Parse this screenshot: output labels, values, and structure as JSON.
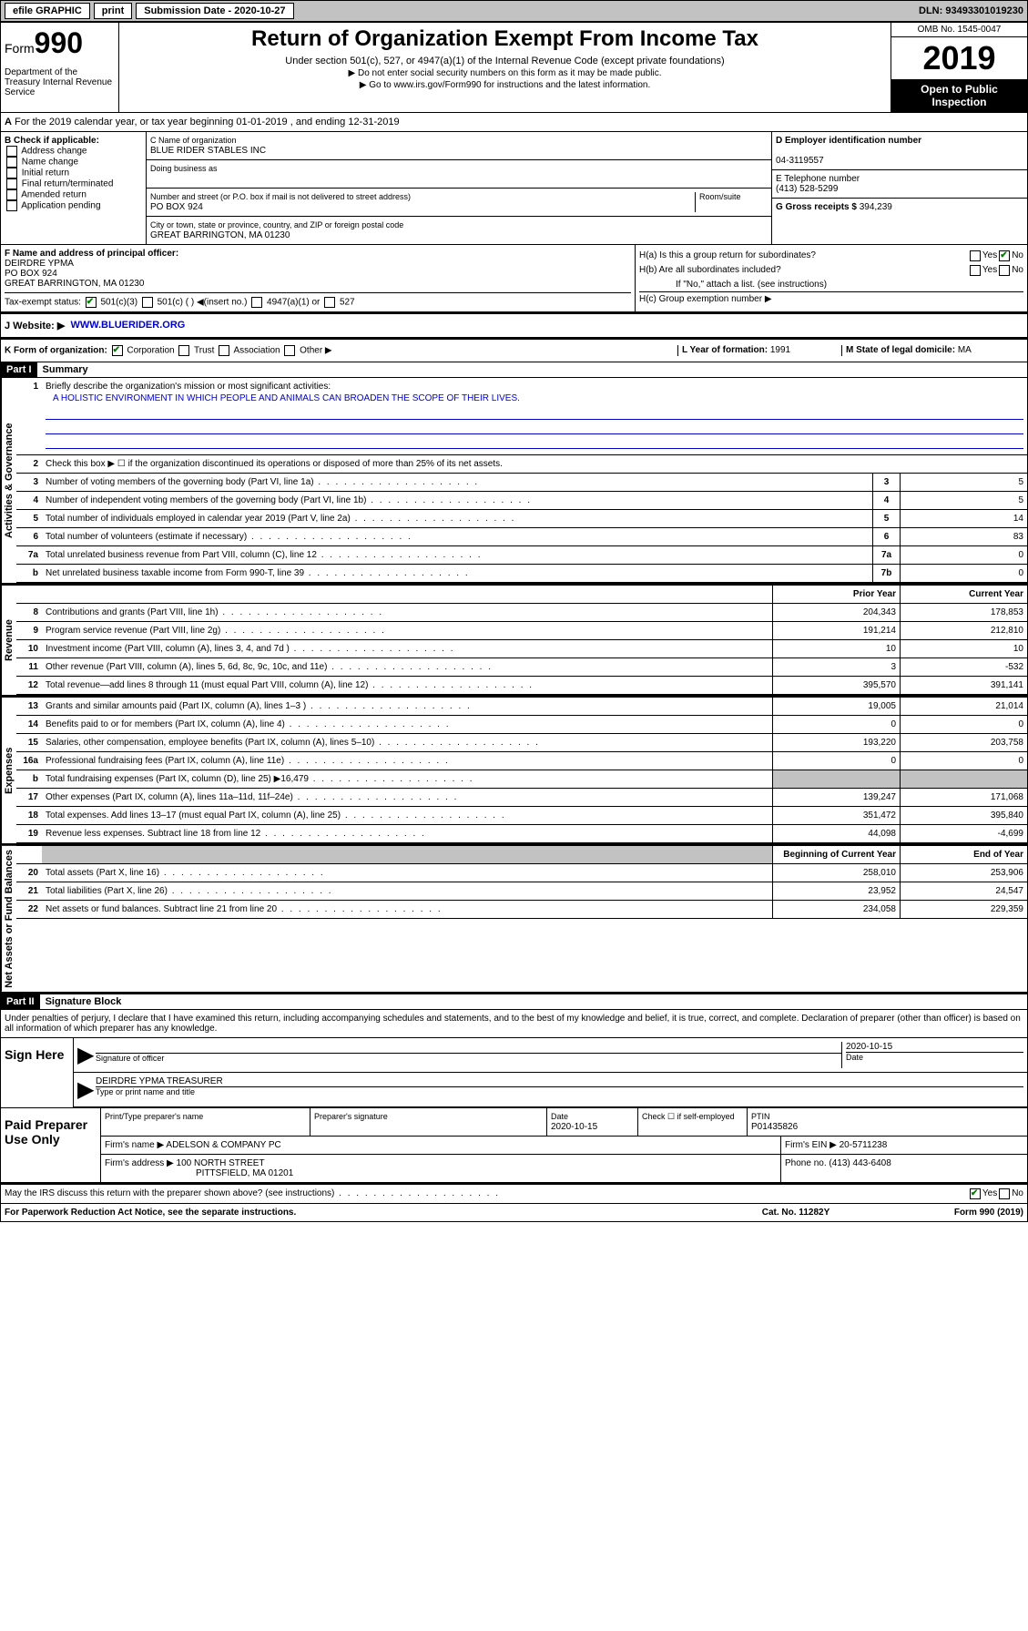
{
  "topbar": {
    "efile": "efile GRAPHIC",
    "print": "print",
    "submission": "Submission Date - 2020-10-27",
    "dln": "DLN: 93493301019230"
  },
  "header": {
    "form": "Form",
    "formnum": "990",
    "dept": "Department of the Treasury Internal Revenue Service",
    "title": "Return of Organization Exempt From Income Tax",
    "sub1": "Under section 501(c), 527, or 4947(a)(1) of the Internal Revenue Code (except private foundations)",
    "sub2": "▶ Do not enter social security numbers on this form as it may be made public.",
    "sub3": "▶ Go to www.irs.gov/Form990 for instructions and the latest information.",
    "omb": "OMB No. 1545-0047",
    "year": "2019",
    "open": "Open to Public Inspection"
  },
  "sectionA": "For the 2019 calendar year, or tax year beginning 01-01-2019    , and ending 12-31-2019",
  "checkB": {
    "label": "B Check if applicable:",
    "items": [
      "Address change",
      "Name change",
      "Initial return",
      "Final return/terminated",
      "Amended return",
      "Application pending"
    ]
  },
  "colC": {
    "name_label": "C Name of organization",
    "name": "BLUE RIDER STABLES INC",
    "dba_label": "Doing business as",
    "addr_label": "Number and street (or P.O. box if mail is not delivered to street address)",
    "room_label": "Room/suite",
    "addr": "PO BOX 924",
    "city_label": "City or town, state or province, country, and ZIP or foreign postal code",
    "city": "GREAT BARRINGTON, MA  01230"
  },
  "colD": {
    "ein_label": "D Employer identification number",
    "ein": "04-3119557",
    "phone_label": "E Telephone number",
    "phone": "(413) 528-5299",
    "receipts_label": "G Gross receipts $",
    "receipts": "394,239"
  },
  "colF": {
    "label": "F Name and address of principal officer:",
    "name": "DEIRDRE YPMA",
    "addr1": "PO BOX 924",
    "addr2": "GREAT BARRINGTON, MA  01230"
  },
  "colH": {
    "ha": "H(a)  Is this a group return for subordinates?",
    "hb": "H(b)  Are all subordinates included?",
    "hb_note": "If \"No,\" attach a list. (see instructions)",
    "hc": "H(c)  Group exemption number ▶"
  },
  "rowI": {
    "label": "Tax-exempt status:",
    "opts": [
      "501(c)(3)",
      "501(c) (   ) ◀(insert no.)",
      "4947(a)(1) or",
      "527"
    ]
  },
  "rowJ": {
    "label": "J  Website: ▶",
    "val": "WWW.BLUERIDER.ORG"
  },
  "rowK": {
    "label": "K Form of organization:",
    "opts": [
      "Corporation",
      "Trust",
      "Association",
      "Other ▶"
    ],
    "l_label": "L Year of formation:",
    "l_val": "1991",
    "m_label": "M State of legal domicile:",
    "m_val": "MA"
  },
  "part1": {
    "hdr": "Part I",
    "title": "Summary",
    "q1": "Briefly describe the organization's mission or most significant activities:",
    "mission": "A HOLISTIC ENVIRONMENT IN WHICH PEOPLE AND ANIMALS CAN BROADEN THE SCOPE OF THEIR LIVES.",
    "q2": "Check this box ▶ ☐  if the organization discontinued its operations or disposed of more than 25% of its net assets.",
    "rows_gov": [
      {
        "n": "3",
        "desc": "Number of voting members of the governing body (Part VI, line 1a)",
        "box": "3",
        "val": "5"
      },
      {
        "n": "4",
        "desc": "Number of independent voting members of the governing body (Part VI, line 1b)",
        "box": "4",
        "val": "5"
      },
      {
        "n": "5",
        "desc": "Total number of individuals employed in calendar year 2019 (Part V, line 2a)",
        "box": "5",
        "val": "14"
      },
      {
        "n": "6",
        "desc": "Total number of volunteers (estimate if necessary)",
        "box": "6",
        "val": "83"
      },
      {
        "n": "7a",
        "desc": "Total unrelated business revenue from Part VIII, column (C), line 12",
        "box": "7a",
        "val": "0"
      },
      {
        "n": "b",
        "desc": "Net unrelated business taxable income from Form 990-T, line 39",
        "box": "7b",
        "val": "0"
      }
    ],
    "col_hdr_prior": "Prior Year",
    "col_hdr_curr": "Current Year",
    "rows_rev": [
      {
        "n": "8",
        "desc": "Contributions and grants (Part VIII, line 1h)",
        "c1": "204,343",
        "c2": "178,853"
      },
      {
        "n": "9",
        "desc": "Program service revenue (Part VIII, line 2g)",
        "c1": "191,214",
        "c2": "212,810"
      },
      {
        "n": "10",
        "desc": "Investment income (Part VIII, column (A), lines 3, 4, and 7d )",
        "c1": "10",
        "c2": "10"
      },
      {
        "n": "11",
        "desc": "Other revenue (Part VIII, column (A), lines 5, 6d, 8c, 9c, 10c, and 11e)",
        "c1": "3",
        "c2": "-532"
      },
      {
        "n": "12",
        "desc": "Total revenue—add lines 8 through 11 (must equal Part VIII, column (A), line 12)",
        "c1": "395,570",
        "c2": "391,141"
      }
    ],
    "rows_exp": [
      {
        "n": "13",
        "desc": "Grants and similar amounts paid (Part IX, column (A), lines 1–3 )",
        "c1": "19,005",
        "c2": "21,014"
      },
      {
        "n": "14",
        "desc": "Benefits paid to or for members (Part IX, column (A), line 4)",
        "c1": "0",
        "c2": "0"
      },
      {
        "n": "15",
        "desc": "Salaries, other compensation, employee benefits (Part IX, column (A), lines 5–10)",
        "c1": "193,220",
        "c2": "203,758"
      },
      {
        "n": "16a",
        "desc": "Professional fundraising fees (Part IX, column (A), line 11e)",
        "c1": "0",
        "c2": "0"
      },
      {
        "n": "b",
        "desc": "Total fundraising expenses (Part IX, column (D), line 25) ▶16,479",
        "c1": "",
        "c2": "",
        "shaded": true
      },
      {
        "n": "17",
        "desc": "Other expenses (Part IX, column (A), lines 11a–11d, 11f–24e)",
        "c1": "139,247",
        "c2": "171,068"
      },
      {
        "n": "18",
        "desc": "Total expenses. Add lines 13–17 (must equal Part IX, column (A), line 25)",
        "c1": "351,472",
        "c2": "395,840"
      },
      {
        "n": "19",
        "desc": "Revenue less expenses. Subtract line 18 from line 12",
        "c1": "44,098",
        "c2": "-4,699"
      }
    ],
    "col_hdr_beg": "Beginning of Current Year",
    "col_hdr_end": "End of Year",
    "rows_net": [
      {
        "n": "20",
        "desc": "Total assets (Part X, line 16)",
        "c1": "258,010",
        "c2": "253,906"
      },
      {
        "n": "21",
        "desc": "Total liabilities (Part X, line 26)",
        "c1": "23,952",
        "c2": "24,547"
      },
      {
        "n": "22",
        "desc": "Net assets or fund balances. Subtract line 21 from line 20",
        "c1": "234,058",
        "c2": "229,359"
      }
    ]
  },
  "part2": {
    "hdr": "Part II",
    "title": "Signature Block",
    "perjury": "Under penalties of perjury, I declare that I have examined this return, including accompanying schedules and statements, and to the best of my knowledge and belief, it is true, correct, and complete. Declaration of preparer (other than officer) is based on all information of which preparer has any knowledge."
  },
  "sign": {
    "label": "Sign Here",
    "sig_label": "Signature of officer",
    "date": "2020-10-15",
    "date_label": "Date",
    "name": "DEIRDRE YPMA TREASURER",
    "name_label": "Type or print name and title"
  },
  "paid": {
    "label": "Paid Preparer Use Only",
    "h1": "Print/Type preparer's name",
    "h2": "Preparer's signature",
    "h3": "Date",
    "h4_date": "2020-10-15",
    "h5": "Check ☐ if self-employed",
    "h6": "PTIN",
    "ptin": "P01435826",
    "firm_label": "Firm's name    ▶",
    "firm": "ADELSON & COMPANY PC",
    "ein_label": "Firm's EIN ▶",
    "ein": "20-5711238",
    "addr_label": "Firm's address ▶",
    "addr1": "100 NORTH STREET",
    "addr2": "PITTSFIELD, MA  01201",
    "phone_label": "Phone no.",
    "phone": "(413) 443-6408"
  },
  "bottom": "May the IRS discuss this return with the preparer shown above? (see instructions)",
  "footer": {
    "left": "For Paperwork Reduction Act Notice, see the separate instructions.",
    "mid": "Cat. No. 11282Y",
    "right": "Form 990 (2019)"
  },
  "labels": {
    "gov": "Activities & Governance",
    "rev": "Revenue",
    "exp": "Expenses",
    "net": "Net Assets or Fund Balances"
  }
}
